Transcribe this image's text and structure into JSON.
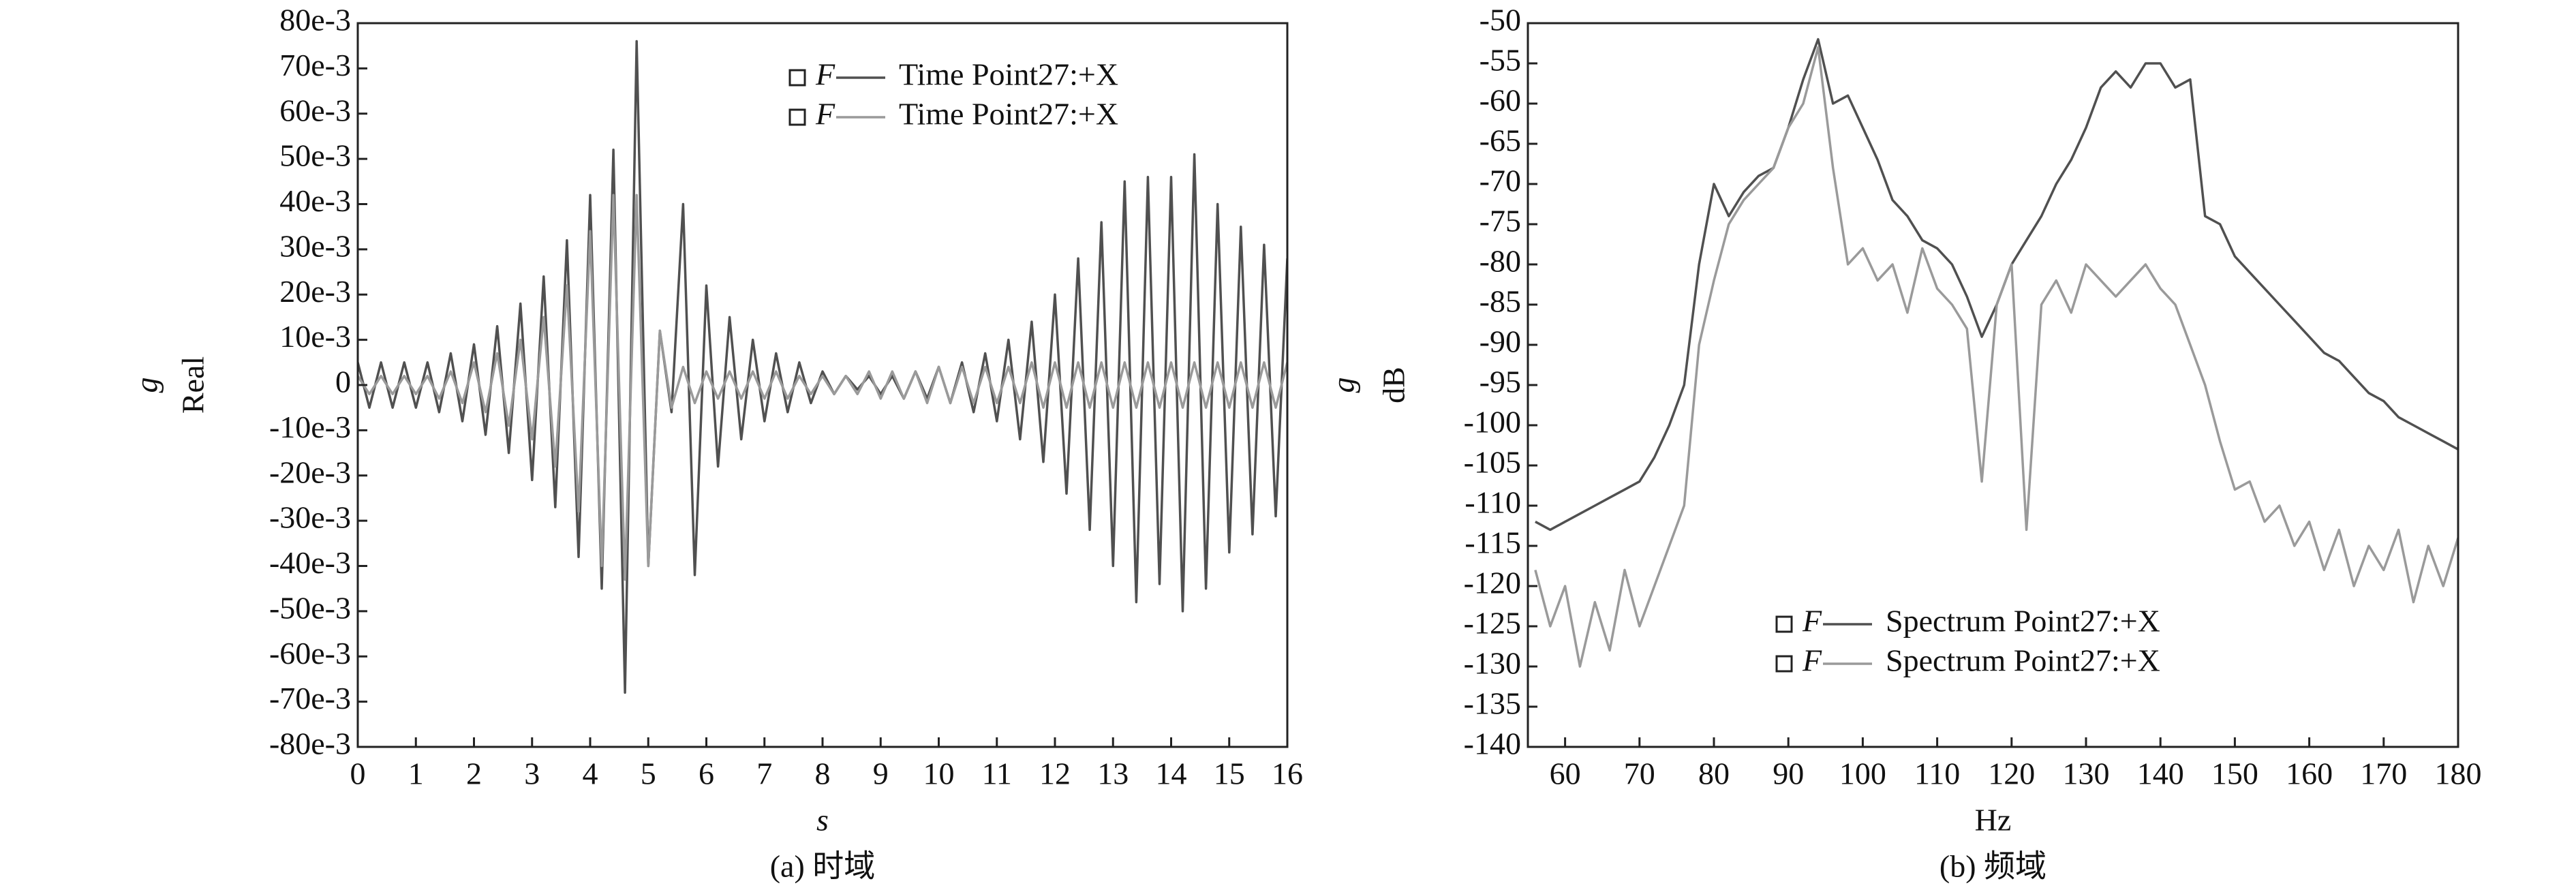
{
  "chart_data": [
    {
      "type": "line",
      "caption": "(a) 时域",
      "xlabel": "s",
      "ylabel": "Real",
      "ylabel_unit": "g",
      "legend": "upper right",
      "legend_prefix": "F",
      "xlim": [
        0,
        16
      ],
      "xticks": [
        0,
        1,
        2,
        3,
        4,
        5,
        6,
        7,
        8,
        9,
        10,
        11,
        12,
        13,
        14,
        15,
        16
      ],
      "ylim": [
        -0.08,
        0.08
      ],
      "yticks": [
        {
          "value": -0.08,
          "label": "-80e-3"
        },
        {
          "value": -0.07,
          "label": "-70e-3"
        },
        {
          "value": -0.06,
          "label": "-60e-3"
        },
        {
          "value": -0.05,
          "label": "-50e-3"
        },
        {
          "value": -0.04,
          "label": "-40e-3"
        },
        {
          "value": -0.03,
          "label": "-30e-3"
        },
        {
          "value": -0.02,
          "label": "-20e-3"
        },
        {
          "value": -0.01,
          "label": "-10e-3"
        },
        0,
        {
          "value": 0.01,
          "label": "10e-3"
        },
        {
          "value": 0.02,
          "label": "20e-3"
        },
        {
          "value": 0.03,
          "label": "30e-3"
        },
        {
          "value": 0.04,
          "label": "40e-3"
        },
        {
          "value": 0.05,
          "label": "50e-3"
        },
        {
          "value": 0.06,
          "label": "60e-3"
        },
        {
          "value": 0.07,
          "label": "70e-3"
        },
        {
          "value": 0.08,
          "label": "80e-3"
        }
      ],
      "x": [
        0,
        0.2,
        0.4,
        0.6,
        0.8,
        1,
        1.2,
        1.4,
        1.6,
        1.8,
        2,
        2.2,
        2.4,
        2.6,
        2.8,
        3,
        3.2,
        3.4,
        3.6,
        3.8,
        4,
        4.2,
        4.4,
        4.6,
        4.8,
        5,
        5.2,
        5.4,
        5.6,
        5.8,
        6,
        6.2,
        6.4,
        6.6,
        6.8,
        7,
        7.2,
        7.4,
        7.6,
        7.8,
        8,
        8.2,
        8.4,
        8.6,
        8.8,
        9,
        9.2,
        9.4,
        9.6,
        9.8,
        10,
        10.2,
        10.4,
        10.6,
        10.8,
        11,
        11.2,
        11.4,
        11.6,
        11.8,
        12,
        12.2,
        12.4,
        12.6,
        12.8,
        13,
        13.2,
        13.4,
        13.6,
        13.8,
        14,
        14.2,
        14.4,
        14.6,
        14.8,
        15,
        15.2,
        15.4,
        15.6,
        15.8,
        16
      ],
      "series": [
        {
          "name": "Time Point27:+X",
          "color": "#505050",
          "values": [
            0.005,
            -0.005,
            0.005,
            -0.005,
            0.005,
            -0.005,
            0.005,
            -0.006,
            0.007,
            -0.008,
            0.009,
            -0.011,
            0.013,
            -0.015,
            0.018,
            -0.021,
            0.024,
            -0.027,
            0.032,
            -0.038,
            0.042,
            -0.045,
            0.052,
            -0.068,
            0.076,
            -0.04,
            0.012,
            -0.006,
            0.04,
            -0.042,
            0.022,
            -0.018,
            0.015,
            -0.012,
            0.01,
            -0.008,
            0.007,
            -0.006,
            0.005,
            -0.004,
            0.003,
            -0.002,
            0.002,
            -0.001,
            0.002,
            -0.002,
            0.002,
            -0.003,
            0.003,
            -0.003,
            0.004,
            -0.004,
            0.005,
            -0.006,
            0.007,
            -0.008,
            0.01,
            -0.012,
            0.014,
            -0.017,
            0.02,
            -0.024,
            0.028,
            -0.032,
            0.036,
            -0.04,
            0.045,
            -0.048,
            0.046,
            -0.044,
            0.046,
            -0.05,
            0.051,
            -0.045,
            0.04,
            -0.037,
            0.035,
            -0.033,
            0.031,
            -0.029,
            0.028
          ]
        },
        {
          "name": "Time Point27:+X",
          "color": "#9a9a9a",
          "values": [
            0.002,
            -0.002,
            0.002,
            -0.002,
            0.002,
            -0.002,
            0.002,
            -0.003,
            0.003,
            -0.004,
            0.005,
            -0.006,
            0.007,
            -0.009,
            0.01,
            -0.012,
            0.015,
            -0.018,
            0.022,
            -0.028,
            0.034,
            -0.04,
            0.042,
            -0.043,
            0.042,
            -0.04,
            0.012,
            -0.005,
            0.004,
            -0.004,
            0.003,
            -0.003,
            0.003,
            -0.003,
            0.003,
            -0.003,
            0.003,
            -0.003,
            0.002,
            -0.002,
            0.002,
            -0.002,
            0.002,
            -0.002,
            0.003,
            -0.003,
            0.003,
            -0.003,
            0.003,
            -0.004,
            0.004,
            -0.004,
            0.004,
            -0.004,
            0.004,
            -0.004,
            0.004,
            -0.004,
            0.005,
            -0.005,
            0.005,
            -0.005,
            0.005,
            -0.005,
            0.005,
            -0.005,
            0.005,
            -0.005,
            0.005,
            -0.005,
            0.005,
            -0.005,
            0.005,
            -0.005,
            0.005,
            -0.005,
            0.005,
            -0.005,
            0.005,
            -0.005,
            0.005
          ]
        }
      ]
    },
    {
      "type": "line",
      "caption": "(b) 频域",
      "xlabel": "Hz",
      "ylabel": "dB",
      "ylabel_unit": "g",
      "legend": "lower right",
      "legend_prefix": "F",
      "xlim": [
        55,
        180
      ],
      "xticks": [
        60,
        70,
        80,
        90,
        100,
        110,
        120,
        130,
        140,
        150,
        160,
        170,
        180
      ],
      "ylim": [
        -140,
        -50
      ],
      "yticks": [
        -140,
        -135,
        -130,
        -125,
        -120,
        -115,
        -110,
        -105,
        -100,
        -95,
        -90,
        -85,
        -80,
        -75,
        -70,
        -65,
        -60,
        -55,
        -50
      ],
      "x": [
        56,
        58,
        60,
        62,
        64,
        66,
        68,
        70,
        72,
        74,
        76,
        78,
        80,
        82,
        84,
        86,
        88,
        90,
        92,
        94,
        96,
        98,
        100,
        102,
        104,
        106,
        108,
        110,
        112,
        114,
        116,
        118,
        120,
        122,
        124,
        126,
        128,
        130,
        132,
        134,
        136,
        138,
        140,
        142,
        144,
        146,
        148,
        150,
        152,
        154,
        156,
        158,
        160,
        162,
        164,
        166,
        168,
        170,
        172,
        174,
        176,
        178,
        180
      ],
      "series": [
        {
          "name": "Spectrum Point27:+X",
          "color": "#505050",
          "values": [
            -112,
            -113,
            -112,
            -111,
            -110,
            -109,
            -108,
            -107,
            -104,
            -100,
            -95,
            -80,
            -70,
            -74,
            -71,
            -69,
            -68,
            -63,
            -57,
            -52,
            -60,
            -59,
            -63,
            -67,
            -72,
            -74,
            -77,
            -78,
            -80,
            -84,
            -89,
            -85,
            -80,
            -77,
            -74,
            -70,
            -67,
            -63,
            -58,
            -56,
            -58,
            -55,
            -55,
            -58,
            -57,
            -74,
            -75,
            -79,
            -81,
            -83,
            -85,
            -87,
            -89,
            -91,
            -92,
            -94,
            -96,
            -97,
            -99,
            -100,
            -101,
            -102,
            -103
          ]
        },
        {
          "name": "Spectrum Point27:+X",
          "color": "#9a9a9a",
          "values": [
            -118,
            -125,
            -120,
            -130,
            -122,
            -128,
            -118,
            -125,
            -120,
            -115,
            -110,
            -90,
            -82,
            -75,
            -72,
            -70,
            -68,
            -63,
            -60,
            -53,
            -68,
            -80,
            -78,
            -82,
            -80,
            -86,
            -78,
            -83,
            -85,
            -88,
            -107,
            -85,
            -80,
            -113,
            -85,
            -82,
            -86,
            -80,
            -82,
            -84,
            -82,
            -80,
            -83,
            -85,
            -90,
            -95,
            -102,
            -108,
            -107,
            -112,
            -110,
            -115,
            -112,
            -118,
            -113,
            -120,
            -115,
            -118,
            -113,
            -122,
            -115,
            -120,
            -114
          ]
        }
      ]
    }
  ]
}
